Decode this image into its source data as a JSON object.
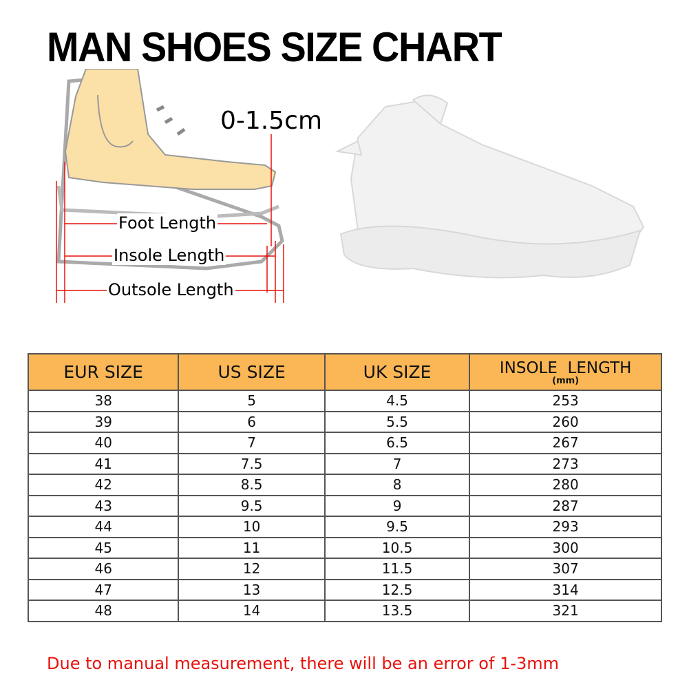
{
  "title": "MAN SHOES SIZE CHART",
  "diagram": {
    "gap_label": "0-1.5cm",
    "foot_length": "Foot Length",
    "insole_length": "Insole Length",
    "outsole_length": "Outsole Length"
  },
  "table": {
    "headers": [
      "EUR SIZE",
      "US SIZE",
      "UK SIZE",
      "INSOLE  LENGTH"
    ],
    "insole_unit": "(mm)",
    "rows": [
      [
        "38",
        "5",
        "4.5",
        "253"
      ],
      [
        "39",
        "6",
        "5.5",
        "260"
      ],
      [
        "40",
        "7",
        "6.5",
        "267"
      ],
      [
        "41",
        "7.5",
        "7",
        "273"
      ],
      [
        "42",
        "8.5",
        "8",
        "280"
      ],
      [
        "43",
        "9.5",
        "9",
        "287"
      ],
      [
        "44",
        "10",
        "9.5",
        "293"
      ],
      [
        "45",
        "11",
        "10.5",
        "300"
      ],
      [
        "46",
        "12",
        "11.5",
        "307"
      ],
      [
        "47",
        "13",
        "12.5",
        "314"
      ],
      [
        "48",
        "14",
        "13.5",
        "321"
      ]
    ]
  },
  "note": "Due to manual measurement, there will be an error of 1-3mm",
  "colors": {
    "header_bg": "#fbb755",
    "note": "#e8120c",
    "measure_lines": "#e8120c",
    "foot": "#fbe0a8"
  }
}
